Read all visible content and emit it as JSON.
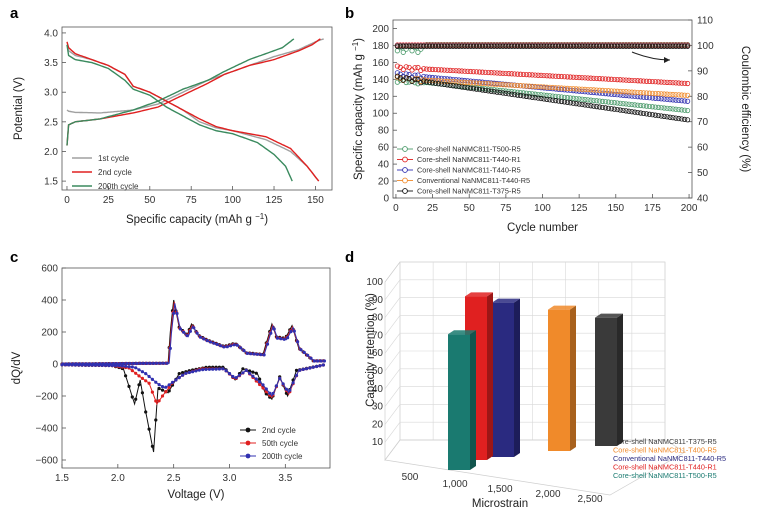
{
  "chart_data": [
    {
      "panel": "a",
      "type": "line",
      "xlabel": "Specific capacity (mAh g",
      "xlabel_sup": "−1",
      "xlabel_end": ")",
      "ylabel": "Potential (V)",
      "xlim": [
        -3,
        160
      ],
      "ylim": [
        1.35,
        4.1
      ],
      "xticks": [
        "0",
        "25",
        "50",
        "75",
        "100",
        "125",
        "150"
      ],
      "yticks": [
        "1.5",
        "2.0",
        "2.5",
        "3.0",
        "3.5",
        "4.0"
      ],
      "series": [
        {
          "name": "1st cycle",
          "color": "#a0a0a0",
          "charge": [
            [
              0,
              2.7
            ],
            [
              1,
              2.68
            ],
            [
              5,
              2.66
            ],
            [
              20,
              2.65
            ],
            [
              40,
              2.7
            ],
            [
              55,
              2.8
            ],
            [
              70,
              3.0
            ],
            [
              85,
              3.2
            ],
            [
              95,
              3.3
            ],
            [
              110,
              3.45
            ],
            [
              125,
              3.6
            ],
            [
              140,
              3.72
            ],
            [
              150,
              3.85
            ],
            [
              155,
              3.9
            ]
          ],
          "discharge": [
            [
              0,
              3.8
            ],
            [
              1,
              3.7
            ],
            [
              5,
              3.62
            ],
            [
              15,
              3.55
            ],
            [
              25,
              3.45
            ],
            [
              35,
              3.3
            ],
            [
              40,
              3.1
            ],
            [
              50,
              3.0
            ],
            [
              60,
              2.85
            ],
            [
              70,
              2.7
            ],
            [
              80,
              2.5
            ],
            [
              90,
              2.4
            ],
            [
              100,
              2.35
            ],
            [
              120,
              2.2
            ],
            [
              135,
              2.0
            ],
            [
              145,
              1.75
            ],
            [
              152,
              1.5
            ]
          ]
        },
        {
          "name": "2nd cycle",
          "color": "#e02020",
          "charge": [
            [
              0,
              2.1
            ],
            [
              1,
              2.45
            ],
            [
              5,
              2.5
            ],
            [
              20,
              2.55
            ],
            [
              40,
              2.65
            ],
            [
              55,
              2.75
            ],
            [
              70,
              2.95
            ],
            [
              85,
              3.15
            ],
            [
              95,
              3.3
            ],
            [
              110,
              3.45
            ],
            [
              125,
              3.55
            ],
            [
              140,
              3.7
            ],
            [
              148,
              3.8
            ],
            [
              153,
              3.9
            ]
          ],
          "discharge": [
            [
              0,
              3.85
            ],
            [
              1,
              3.75
            ],
            [
              5,
              3.65
            ],
            [
              15,
              3.55
            ],
            [
              25,
              3.45
            ],
            [
              35,
              3.3
            ],
            [
              40,
              3.1
            ],
            [
              50,
              3.0
            ],
            [
              60,
              2.85
            ],
            [
              70,
              2.7
            ],
            [
              80,
              2.55
            ],
            [
              90,
              2.42
            ],
            [
              100,
              2.35
            ],
            [
              120,
              2.25
            ],
            [
              135,
              2.05
            ],
            [
              145,
              1.75
            ],
            [
              152,
              1.5
            ]
          ]
        },
        {
          "name": "200th cycle",
          "color": "#3a8a5e",
          "charge": [
            [
              0,
              2.1
            ],
            [
              1,
              2.45
            ],
            [
              5,
              2.5
            ],
            [
              20,
              2.55
            ],
            [
              40,
              2.7
            ],
            [
              55,
              2.85
            ],
            [
              70,
              3.05
            ],
            [
              85,
              3.2
            ],
            [
              95,
              3.35
            ],
            [
              110,
              3.55
            ],
            [
              120,
              3.65
            ],
            [
              130,
              3.75
            ],
            [
              137,
              3.9
            ]
          ],
          "discharge": [
            [
              0,
              3.8
            ],
            [
              1,
              3.62
            ],
            [
              5,
              3.55
            ],
            [
              15,
              3.5
            ],
            [
              25,
              3.4
            ],
            [
              35,
              3.2
            ],
            [
              40,
              3.05
            ],
            [
              50,
              2.95
            ],
            [
              60,
              2.75
            ],
            [
              70,
              2.6
            ],
            [
              80,
              2.45
            ],
            [
              90,
              2.35
            ],
            [
              100,
              2.3
            ],
            [
              115,
              2.15
            ],
            [
              125,
              1.95
            ],
            [
              132,
              1.75
            ],
            [
              136,
              1.5
            ]
          ]
        }
      ]
    },
    {
      "panel": "b",
      "type": "scatter",
      "xlabel": "Cycle number",
      "ylabel": "Specific capacity (mAh g",
      "ylabel_sup": "−1",
      "ylabel_end": ")",
      "y2label": "Coulombic efficiency (%)",
      "xlim": [
        -2,
        202
      ],
      "ylim": [
        0,
        210
      ],
      "y2lim": [
        40,
        110
      ],
      "xticks": [
        "0",
        "25",
        "50",
        "75",
        "100",
        "125",
        "150",
        "175",
        "200"
      ],
      "yticks": [
        "0",
        "20",
        "40",
        "60",
        "80",
        "100",
        "120",
        "140",
        "160",
        "180",
        "200"
      ],
      "y2ticks": [
        "40",
        "50",
        "60",
        "70",
        "80",
        "90",
        "100",
        "110"
      ],
      "series": [
        {
          "name": "Core-shell NaNMC811-T500-R5",
          "color": "#4a9a6a",
          "start": 140,
          "end": 103
        },
        {
          "name": "Core-shell NaNMC811-T440-R1",
          "color": "#e02020",
          "start": 154,
          "end": 135
        },
        {
          "name": "Core-shell NaNMC811-T440-R5",
          "color": "#3030b0",
          "start": 146,
          "end": 114
        },
        {
          "name": "Conventional NaNMC811-T440-R5",
          "color": "#f08a2a",
          "start": 141,
          "end": 121
        },
        {
          "name": "Core-shell NaNMC811-T375-R5",
          "color": "#111111",
          "start": 142,
          "end": 92
        }
      ],
      "coulombic_efficiency": 100
    },
    {
      "panel": "c",
      "type": "line",
      "xlabel": "Voltage (V)",
      "ylabel": "dQ/dV",
      "xlim": [
        1.5,
        3.9
      ],
      "ylim": [
        -650,
        600
      ],
      "xticks": [
        "1.5",
        "2.0",
        "2.5",
        "3.0",
        "3.5",
        "4.0"
      ],
      "yticks": [
        "−600",
        "−400",
        "−200",
        "0",
        "200",
        "400",
        "600"
      ],
      "series": [
        {
          "name": "2nd cycle",
          "color": "#111111"
        },
        {
          "name": "50th cycle",
          "color": "#e02020"
        },
        {
          "name": "200th cycle",
          "color": "#3030b0"
        }
      ]
    },
    {
      "panel": "d",
      "type": "bar",
      "xlabel": "Microstrain",
      "ylabel": "Capacity retention (%)",
      "ylim": [
        0,
        100
      ],
      "xticks": [
        "500",
        "1,000",
        "1,500",
        "2,000",
        "2,500"
      ],
      "yticks": [
        "10",
        "20",
        "30",
        "40",
        "50",
        "60",
        "70",
        "80",
        "90",
        "100"
      ],
      "bars": [
        {
          "name": "Core-shell NaNMC811-T375-R5",
          "color": "#3a3a3a",
          "value": 69
        },
        {
          "name": "Core-shell NaNMC811-T400-R5",
          "color": "#f08a2a",
          "value": 76
        },
        {
          "name": "Conventional NaNMC811-T440-R5",
          "color": "#2a2a80",
          "value": 83
        },
        {
          "name": "Core-shell NaNMC811-T440-R1",
          "color": "#e02020",
          "value": 88
        },
        {
          "name": "Core-shell NaNMC811-T500-R5",
          "color": "#1a7a70",
          "value": 73
        }
      ]
    }
  ]
}
